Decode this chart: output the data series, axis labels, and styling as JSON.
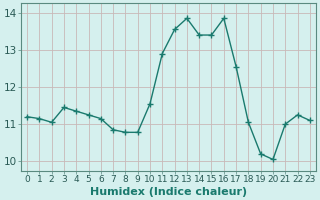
{
  "x": [
    0,
    1,
    2,
    3,
    4,
    5,
    6,
    7,
    8,
    9,
    10,
    11,
    12,
    13,
    14,
    15,
    16,
    17,
    18,
    19,
    20,
    21,
    22,
    23
  ],
  "y": [
    11.2,
    11.15,
    11.05,
    11.45,
    11.35,
    11.25,
    11.15,
    10.85,
    10.78,
    10.78,
    11.55,
    12.9,
    13.55,
    13.85,
    13.4,
    13.4,
    13.85,
    12.55,
    11.05,
    10.2,
    10.05,
    11.0,
    11.25,
    11.1
  ],
  "line_color": "#1a7a6e",
  "marker": "+",
  "marker_size": 4,
  "marker_linewidth": 1.0,
  "line_width": 1.0,
  "bg_color": "#d5f0ee",
  "grid_color": "#c8b8b8",
  "xlabel": "Humidex (Indice chaleur)",
  "xlabel_fontsize": 8,
  "xlabel_fontweight": "bold",
  "xlim": [
    -0.5,
    23.5
  ],
  "ylim": [
    9.75,
    14.25
  ],
  "yticks": [
    10,
    11,
    12,
    13,
    14
  ],
  "xticks": [
    0,
    1,
    2,
    3,
    4,
    5,
    6,
    7,
    8,
    9,
    10,
    11,
    12,
    13,
    14,
    15,
    16,
    17,
    18,
    19,
    20,
    21,
    22,
    23
  ],
  "tick_fontsize": 6.5,
  "ytick_fontsize": 7.5,
  "spine_color": "#5a8a80",
  "tick_color": "#2a5a55"
}
